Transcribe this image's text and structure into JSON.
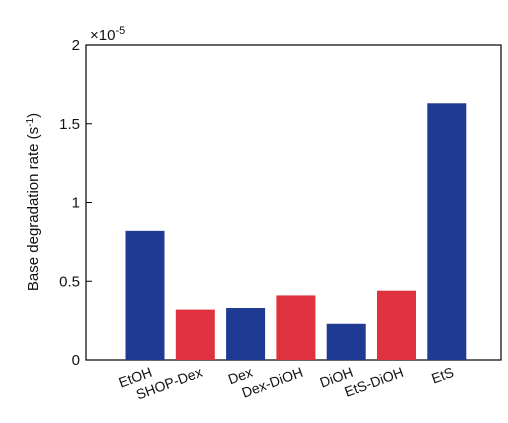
{
  "chart_data": {
    "type": "bar",
    "categories": [
      "EtOH",
      "SHOP-Dex",
      "Dex",
      "Dex-DiOH",
      "DiOH",
      "EtS-DiOH",
      "EtS"
    ],
    "values": [
      0.82,
      0.32,
      0.33,
      0.41,
      0.23,
      0.44,
      1.63
    ],
    "bar_colors": [
      "#1f3a93",
      "#e0313f",
      "#1f3a93",
      "#e0313f",
      "#1f3a93",
      "#e0313f",
      "#1f3a93"
    ],
    "ylabel_main": "Base degradation rate (s",
    "ylabel_sup": "-1",
    "ylabel_close": ")",
    "ylim": [
      0,
      2
    ],
    "yticks": [
      0,
      0.5,
      1,
      1.5,
      2
    ],
    "ytick_labels": [
      "0",
      "0.5",
      "1",
      "1.5",
      "2"
    ],
    "scale_base": "×10",
    "scale_exp": "-5",
    "grid": false
  }
}
